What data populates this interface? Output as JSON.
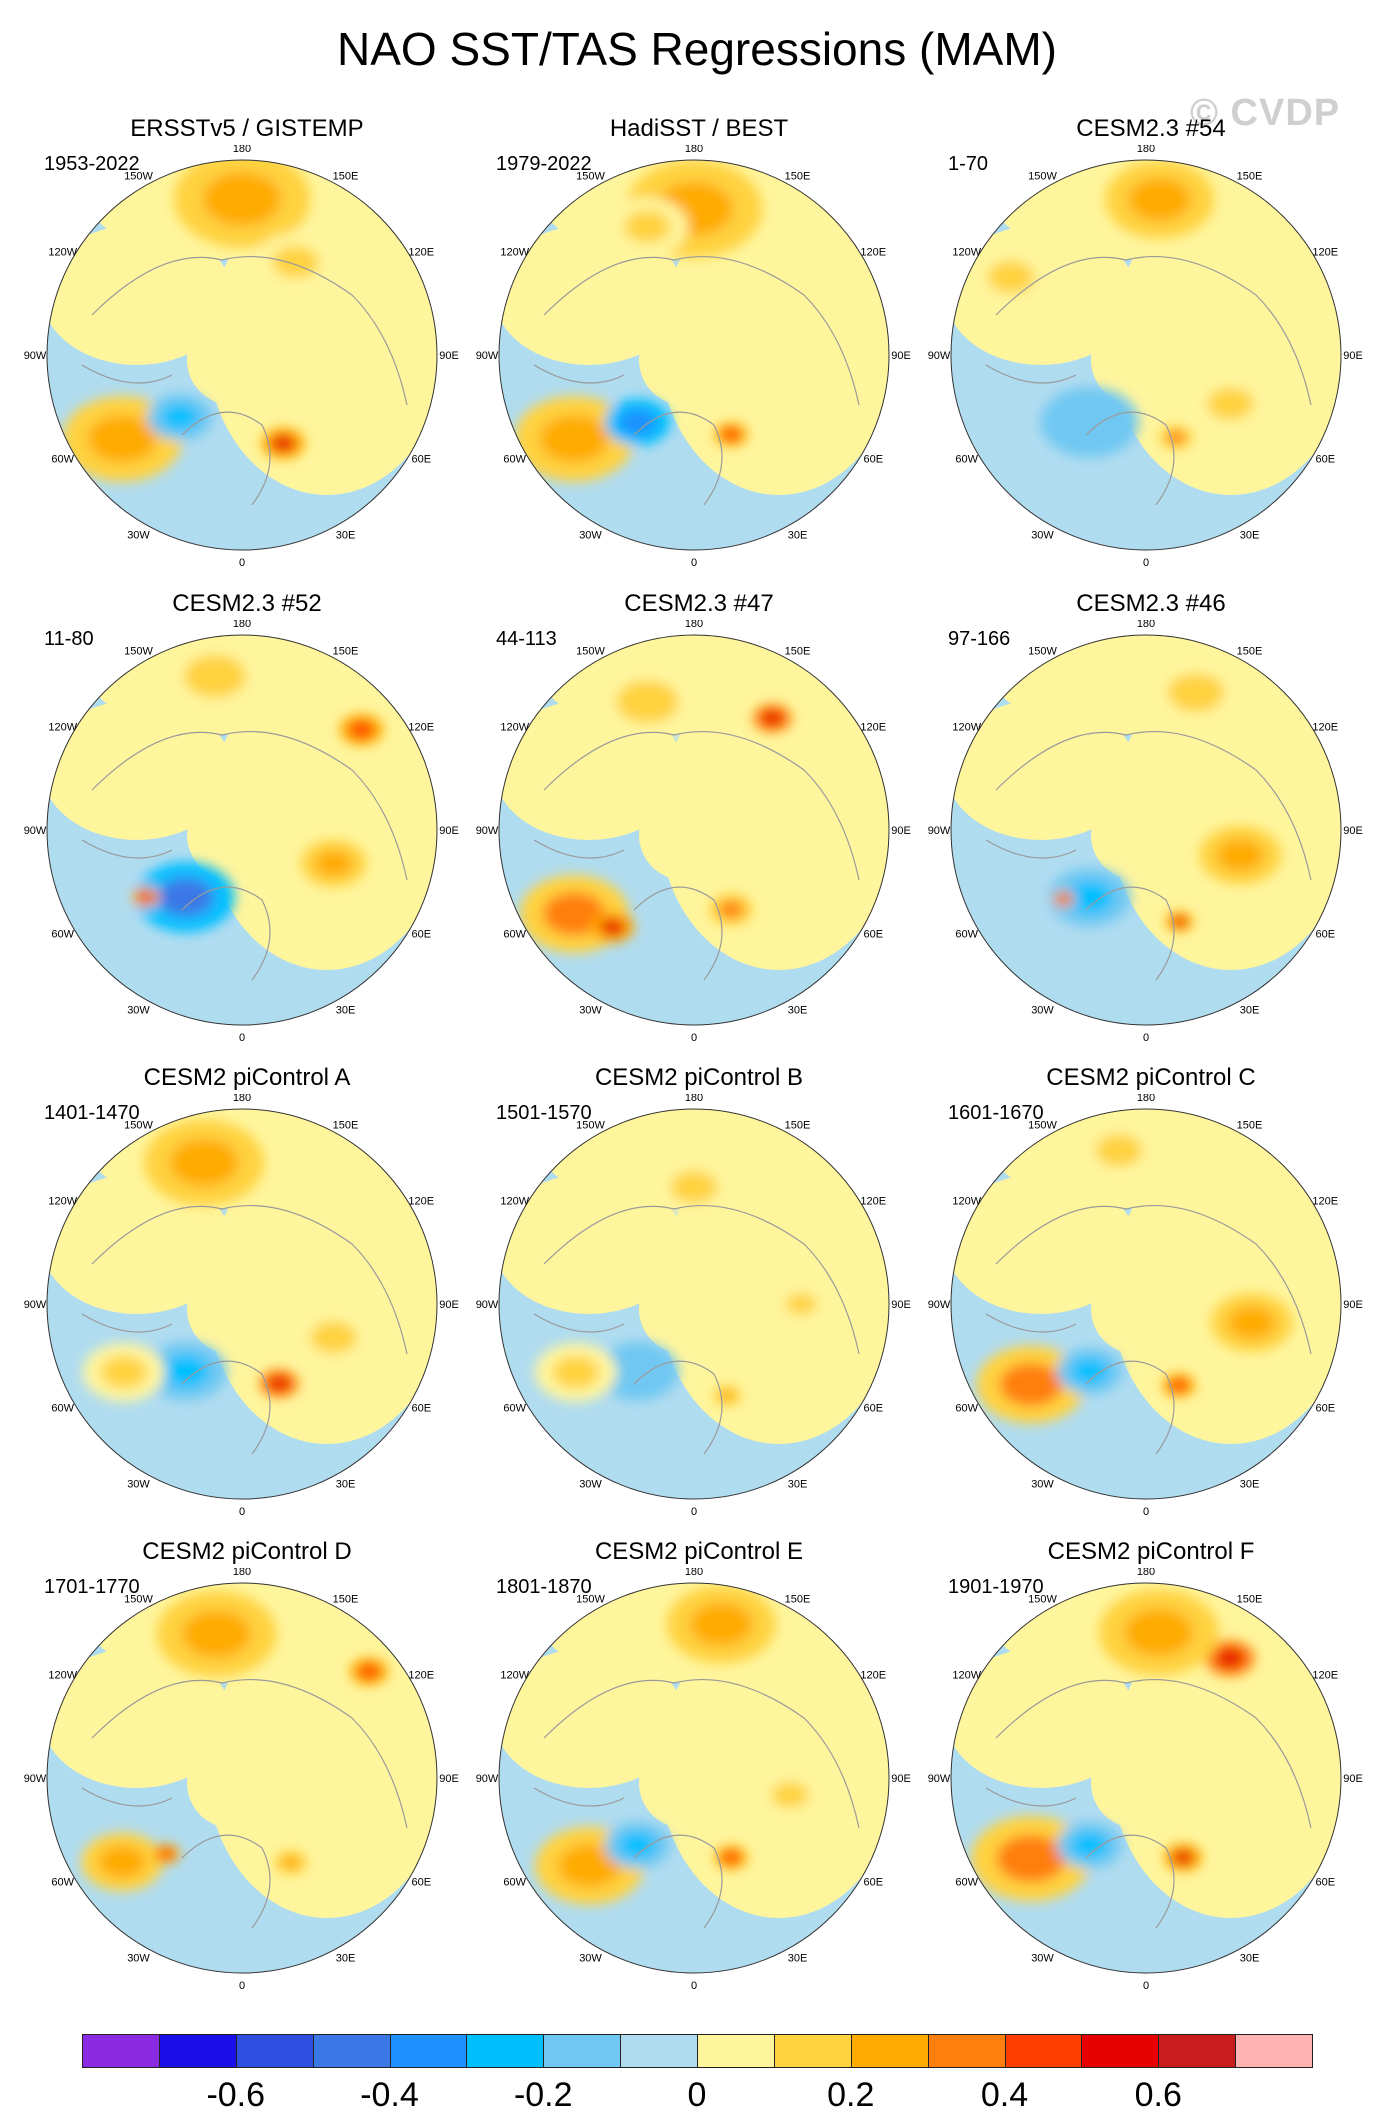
{
  "title": "NAO SST/TAS Regressions (MAM)",
  "watermark": "© CVDP",
  "lon_labels": [
    "180",
    "150E",
    "120E",
    "90E",
    "60E",
    "30E",
    "0",
    "30W",
    "60W",
    "90W",
    "120W",
    "150W"
  ],
  "panels": [
    {
      "title": "ERSSTv5 / GISTEMP",
      "years": "1953-2022",
      "pattern": 0
    },
    {
      "title": "HadiSST / BEST",
      "years": "1979-2022",
      "pattern": 1
    },
    {
      "title": "CESM2.3 #54",
      "years": "1-70",
      "pattern": 2
    },
    {
      "title": "CESM2.3 #52",
      "years": "11-80",
      "pattern": 3
    },
    {
      "title": "CESM2.3 #47",
      "years": "44-113",
      "pattern": 4
    },
    {
      "title": "CESM2.3 #46",
      "years": "97-166",
      "pattern": 5
    },
    {
      "title": "CESM2 piControl A",
      "years": "1401-1470",
      "pattern": 6
    },
    {
      "title": "CESM2 piControl B",
      "years": "1501-1570",
      "pattern": 7
    },
    {
      "title": "CESM2 piControl C",
      "years": "1601-1670",
      "pattern": 8
    },
    {
      "title": "CESM2 piControl D",
      "years": "1701-1770",
      "pattern": 9
    },
    {
      "title": "CESM2 piControl E",
      "years": "1801-1870",
      "pattern": 10
    },
    {
      "title": "CESM2 piControl F",
      "years": "1901-1970",
      "pattern": 11
    }
  ],
  "colorbar": {
    "colors": [
      "#8a2be2",
      "#1a0fe8",
      "#2f4fe0",
      "#3a78e6",
      "#1e90ff",
      "#00bfff",
      "#70c8f2",
      "#b0dcf0",
      "#fff59d",
      "#ffd23f",
      "#ffab00",
      "#ff7f0e",
      "#ff3d00",
      "#e60000",
      "#c91d1d",
      "#ffb3b3"
    ],
    "labels": [
      "-0.6",
      "-0.4",
      "-0.2",
      "0",
      "0.2",
      "0.4",
      "0.6"
    ]
  },
  "palette": {
    "ocean_neutral": "#b0dcf0",
    "land_neutral": "#fff59d",
    "coast": "#9a9a9a"
  }
}
